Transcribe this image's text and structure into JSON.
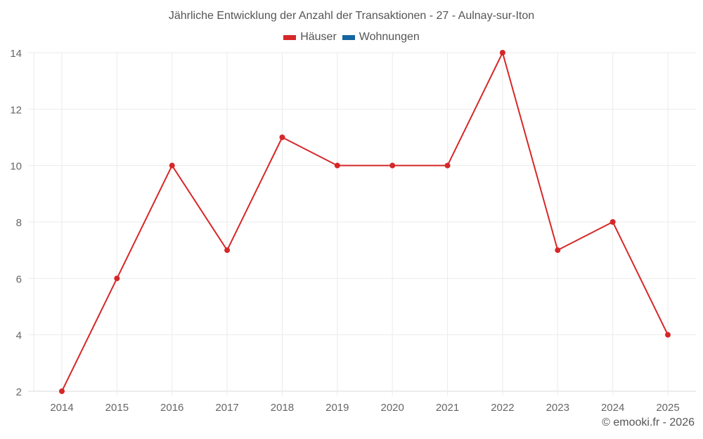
{
  "chart_data": {
    "type": "line",
    "title": "Jährliche Entwicklung der Anzahl der Transaktionen - 27 - Aulnay-sur-Iton",
    "xlabel": "",
    "ylabel": "",
    "categories": [
      "2014",
      "2015",
      "2016",
      "2017",
      "2018",
      "2019",
      "2020",
      "2021",
      "2022",
      "2023",
      "2024",
      "2025"
    ],
    "series": [
      {
        "name": "Häuser",
        "color": "#d62728",
        "values": [
          2,
          6,
          10,
          7,
          11,
          10,
          10,
          10,
          14,
          7,
          8,
          4
        ]
      },
      {
        "name": "Wohnungen",
        "color": "#1565a0",
        "values": []
      }
    ],
    "ylim": [
      2,
      14
    ],
    "yticks": [
      2,
      4,
      6,
      8,
      10,
      12,
      14
    ],
    "grid": true,
    "legend_position": "top"
  },
  "legend": {
    "items": [
      {
        "label": "Häuser",
        "color": "#d62728"
      },
      {
        "label": "Wohnungen",
        "color": "#1565a0"
      }
    ]
  },
  "credit": "© emooki.fr - 2026",
  "colors": {
    "grid": "#ebebeb",
    "axis": "#d8d8d8",
    "text": "#555555"
  }
}
